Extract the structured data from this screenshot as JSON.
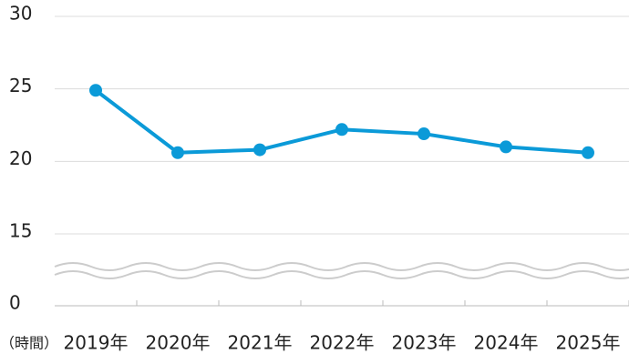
{
  "chart_data": {
    "type": "line",
    "x_label": "（時間）",
    "categories": [
      "2019年",
      "2020年",
      "2021年",
      "2022年",
      "2023年",
      "2024年",
      "2025年"
    ],
    "series": [
      {
        "color": "#0b9ad8",
        "values": [
          24.9,
          20.6,
          20.8,
          22.2,
          21.9,
          21.0,
          20.6
        ]
      }
    ],
    "ylim": [
      0,
      30
    ],
    "yticks": [
      0,
      15,
      20,
      25,
      30
    ],
    "axis_break": [
      0,
      15
    ],
    "grid": true
  }
}
